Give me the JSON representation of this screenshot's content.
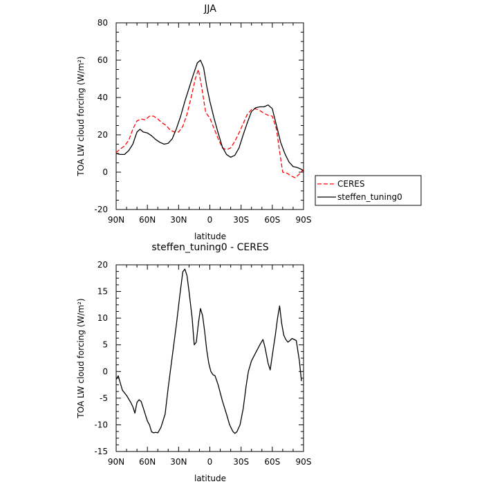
{
  "chart_data": [
    {
      "type": "line",
      "title": "JJA",
      "xlabel": "latitude",
      "ylabel": "TOA LW cloud forcing (W/m²)",
      "xlim": [
        90,
        -90
      ],
      "ylim": [
        -20,
        80
      ],
      "x_ticks": [
        90,
        60,
        30,
        0,
        -30,
        -60,
        -90
      ],
      "x_tick_labels": [
        "90N",
        "60N",
        "30N",
        "0",
        "30S",
        "60S",
        "90S"
      ],
      "y_ticks": [
        -20,
        0,
        20,
        40,
        60,
        80
      ],
      "y_tick_labels": [
        "-20",
        "0",
        "20",
        "40",
        "60",
        "80"
      ],
      "legend_position": "right-bottom-outside",
      "series": [
        {
          "name": "CERES",
          "color": "#ff0000",
          "dash": "dashed",
          "points": [
            [
              90,
              10.5
            ],
            [
              86,
              12.5
            ],
            [
              82,
              14
            ],
            [
              78,
              17
            ],
            [
              74,
              23
            ],
            [
              70,
              27.5
            ],
            [
              66,
              28.5
            ],
            [
              62,
              28
            ],
            [
              58,
              30
            ],
            [
              54,
              30
            ],
            [
              50,
              28.5
            ],
            [
              46,
              26.5
            ],
            [
              42,
              25
            ],
            [
              38,
              22.5
            ],
            [
              34,
              21.5
            ],
            [
              30,
              21.5
            ],
            [
              26,
              24.5
            ],
            [
              22,
              31
            ],
            [
              18,
              40
            ],
            [
              14,
              50
            ],
            [
              11,
              55
            ],
            [
              8,
              46
            ],
            [
              4,
              32
            ],
            [
              0,
              29
            ],
            [
              -4,
              23.5
            ],
            [
              -8,
              18
            ],
            [
              -12,
              13
            ],
            [
              -16,
              12
            ],
            [
              -20,
              13
            ],
            [
              -24,
              16.5
            ],
            [
              -28,
              21
            ],
            [
              -32,
              26
            ],
            [
              -36,
              31
            ],
            [
              -40,
              33.5
            ],
            [
              -44,
              34
            ],
            [
              -48,
              33
            ],
            [
              -52,
              31.5
            ],
            [
              -56,
              30.5
            ],
            [
              -60,
              30
            ],
            [
              -64,
              23
            ],
            [
              -67,
              11
            ],
            [
              -70,
              0
            ],
            [
              -74,
              -0.5
            ],
            [
              -78,
              -2
            ],
            [
              -82,
              -3
            ],
            [
              -86,
              -1
            ],
            [
              -90,
              1.5
            ]
          ]
        },
        {
          "name": "steffen_tuning0",
          "color": "#000000",
          "dash": "solid",
          "points": [
            [
              90,
              10
            ],
            [
              86,
              9.5
            ],
            [
              82,
              9.5
            ],
            [
              78,
              11.5
            ],
            [
              74,
              15
            ],
            [
              70,
              21.5
            ],
            [
              67,
              23
            ],
            [
              64,
              21.5
            ],
            [
              60,
              21
            ],
            [
              56,
              19.5
            ],
            [
              52,
              17.5
            ],
            [
              48,
              16
            ],
            [
              44,
              15
            ],
            [
              40,
              15.5
            ],
            [
              36,
              18
            ],
            [
              32,
              23.5
            ],
            [
              28,
              30
            ],
            [
              24,
              38
            ],
            [
              20,
              45
            ],
            [
              16,
              52
            ],
            [
              12,
              58.5
            ],
            [
              9,
              60
            ],
            [
              6,
              56
            ],
            [
              3,
              46
            ],
            [
              0,
              38
            ],
            [
              -4,
              29
            ],
            [
              -8,
              21
            ],
            [
              -12,
              13.5
            ],
            [
              -16,
              9.5
            ],
            [
              -20,
              8
            ],
            [
              -24,
              9
            ],
            [
              -28,
              13
            ],
            [
              -32,
              20
            ],
            [
              -36,
              26.5
            ],
            [
              -40,
              32.5
            ],
            [
              -44,
              34.5
            ],
            [
              -48,
              35
            ],
            [
              -52,
              35
            ],
            [
              -56,
              36
            ],
            [
              -60,
              34
            ],
            [
              -64,
              25
            ],
            [
              -68,
              16
            ],
            [
              -72,
              10
            ],
            [
              -76,
              5.5
            ],
            [
              -80,
              3
            ],
            [
              -84,
              2.5
            ],
            [
              -88,
              1.5
            ],
            [
              -90,
              0.5
            ]
          ]
        }
      ]
    },
    {
      "type": "line",
      "title": "steffen_tuning0 - CERES",
      "xlabel": "latitude",
      "ylabel": "TOA LW cloud forcing (W/m²)",
      "xlim": [
        90,
        -90
      ],
      "ylim": [
        -15,
        20
      ],
      "x_ticks": [
        90,
        60,
        30,
        0,
        -30,
        -60,
        -90
      ],
      "x_tick_labels": [
        "90N",
        "60N",
        "30N",
        "0",
        "30S",
        "60S",
        "90S"
      ],
      "y_ticks": [
        -15,
        -10,
        -5,
        0,
        5,
        10,
        15,
        20
      ],
      "y_tick_labels": [
        "-15",
        "-10",
        "-5",
        "0",
        "5",
        "10",
        "15",
        "20"
      ],
      "series": [
        {
          "color": "#000000",
          "dash": "solid",
          "points": [
            [
              90,
              -1.5
            ],
            [
              88,
              -0.8
            ],
            [
              84,
              -3.5
            ],
            [
              80,
              -4.5
            ],
            [
              76,
              -5.8
            ],
            [
              74,
              -6.6
            ],
            [
              72,
              -7.8
            ],
            [
              70,
              -5.8
            ],
            [
              68,
              -5.3
            ],
            [
              66,
              -5.6
            ],
            [
              64,
              -6.8
            ],
            [
              60,
              -9.3
            ],
            [
              58,
              -10
            ],
            [
              56,
              -11.3
            ],
            [
              54,
              -11.5
            ],
            [
              52,
              -11.4
            ],
            [
              50,
              -11.5
            ],
            [
              47,
              -10.5
            ],
            [
              43,
              -8
            ],
            [
              40,
              -3
            ],
            [
              36,
              3
            ],
            [
              32,
              9
            ],
            [
              29,
              14
            ],
            [
              26,
              18.7
            ],
            [
              24,
              19.2
            ],
            [
              22,
              18
            ],
            [
              20,
              15
            ],
            [
              17,
              10
            ],
            [
              15,
              5
            ],
            [
              13,
              5.5
            ],
            [
              11,
              9
            ],
            [
              9,
              11.8
            ],
            [
              7,
              10.5
            ],
            [
              5,
              7.5
            ],
            [
              3,
              4
            ],
            [
              1,
              1.5
            ],
            [
              -1,
              0
            ],
            [
              -3,
              -0.6
            ],
            [
              -5,
              -0.8
            ],
            [
              -8,
              -2.5
            ],
            [
              -12,
              -5.5
            ],
            [
              -16,
              -8
            ],
            [
              -19,
              -10
            ],
            [
              -22,
              -11.2
            ],
            [
              -24,
              -11.6
            ],
            [
              -26,
              -11.3
            ],
            [
              -29,
              -10
            ],
            [
              -32,
              -7
            ],
            [
              -35,
              -2.5
            ],
            [
              -37,
              0
            ],
            [
              -40,
              2
            ],
            [
              -44,
              3.5
            ],
            [
              -48,
              5
            ],
            [
              -51,
              6
            ],
            [
              -53,
              4.5
            ],
            [
              -56,
              1.5
            ],
            [
              -58,
              0.3
            ],
            [
              -60,
              3
            ],
            [
              -63,
              7
            ],
            [
              -65,
              10
            ],
            [
              -67,
              12.3
            ],
            [
              -69,
              9
            ],
            [
              -71,
              6.8
            ],
            [
              -73,
              6
            ],
            [
              -75,
              5.5
            ],
            [
              -77,
              5.8
            ],
            [
              -79,
              6.2
            ],
            [
              -81,
              6
            ],
            [
              -83,
              5.8
            ],
            [
              -86,
              2
            ],
            [
              -88,
              -1.8
            ]
          ]
        }
      ]
    }
  ]
}
